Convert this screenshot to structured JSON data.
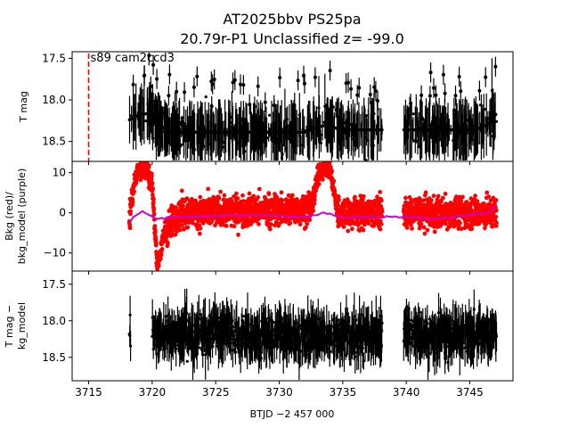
{
  "figure": {
    "title_line1": "AT2025bbv  PS25pa",
    "title_line2": "20.79r-P1 Unclassified z= -99.0",
    "xlabel": "BTJD −2 457 000"
  },
  "chart_data": [
    {
      "type": "scatter",
      "panel": "top",
      "ylabel": "T mag",
      "y_inverted": true,
      "xlim": [
        3713.7,
        3748.4
      ],
      "ylim": [
        18.74,
        17.42
      ],
      "x_ticks": [
        3715,
        3720,
        3725,
        3730,
        3735,
        3740,
        3745
      ],
      "y_ticks": [
        17.5,
        18.0,
        18.5
      ],
      "y_tick_labels": [
        "17.5",
        "18.0",
        "18.5"
      ],
      "vline_x": 3715.0,
      "vline_color": "#ff0000",
      "annotation": "s89 cam2ccd3",
      "marker_color": "#000000",
      "segments": [
        {
          "x_start": 3718.2,
          "x_end": 3738.1
        },
        {
          "x_start": 3739.8,
          "x_end": 3747.1
        }
      ],
      "baseline_mag": 18.4,
      "bump_points": [
        {
          "x": 3718.2,
          "y": 18.24
        },
        {
          "x": 3719.0,
          "y": 18.18
        },
        {
          "x": 3719.8,
          "y": 18.16
        },
        {
          "x": 3720.5,
          "y": 18.3
        },
        {
          "x": 3721.5,
          "y": 18.39
        },
        {
          "x": 3732.0,
          "y": 18.39
        },
        {
          "x": 3733.0,
          "y": 18.33
        },
        {
          "x": 3733.8,
          "y": 18.3
        },
        {
          "x": 3734.8,
          "y": 18.36
        },
        {
          "x": 3745.5,
          "y": 18.36
        },
        {
          "x": 3746.8,
          "y": 18.26
        }
      ]
    },
    {
      "type": "scatter",
      "panel": "middle",
      "ylabel": "Bkg (red)/ bkg_model (purple)",
      "xlim": [
        3713.7,
        3748.4
      ],
      "ylim": [
        -14.5,
        12.8
      ],
      "y_ticks": [
        10,
        0,
        -10
      ],
      "y_tick_labels": [
        "10",
        "0",
        "−10"
      ],
      "marker_color": "#ff0000",
      "model_color": "#cc00cc",
      "bkg_points": [
        {
          "x": 3718.2,
          "y": -2.0
        },
        {
          "x": 3718.5,
          "y": 6.0
        },
        {
          "x": 3718.9,
          "y": 11.0
        },
        {
          "x": 3719.5,
          "y": 11.0
        },
        {
          "x": 3720.0,
          "y": 7.0
        },
        {
          "x": 3720.4,
          "y": -13.0
        },
        {
          "x": 3721.0,
          "y": -5.0
        },
        {
          "x": 3722.0,
          "y": 0.0
        },
        {
          "x": 3732.5,
          "y": 1.0
        },
        {
          "x": 3733.2,
          "y": 11.0
        },
        {
          "x": 3734.0,
          "y": 11.0
        },
        {
          "x": 3734.6,
          "y": 0.0
        },
        {
          "x": 3738.1,
          "y": 0.0
        },
        {
          "x": 3739.8,
          "y": 0.0
        },
        {
          "x": 3747.1,
          "y": 0.0
        }
      ],
      "model_points": [
        {
          "x": 3718.2,
          "y": -2.0
        },
        {
          "x": 3719.2,
          "y": 0.5
        },
        {
          "x": 3720.2,
          "y": -1.5
        },
        {
          "x": 3722.0,
          "y": -1.0
        },
        {
          "x": 3728.0,
          "y": -0.5
        },
        {
          "x": 3732.0,
          "y": -1.0
        },
        {
          "x": 3733.6,
          "y": 0.0
        },
        {
          "x": 3735.0,
          "y": -1.2
        },
        {
          "x": 3738.1,
          "y": -1.0
        },
        {
          "x": 3739.8,
          "y": -1.0
        },
        {
          "x": 3742.0,
          "y": -1.5
        },
        {
          "x": 3745.0,
          "y": -0.5
        },
        {
          "x": 3746.5,
          "y": 0.0
        },
        {
          "x": 3747.1,
          "y": 2.0
        }
      ]
    },
    {
      "type": "scatter",
      "panel": "bottom",
      "ylabel": "T mag − bkg_model",
      "y_inverted": true,
      "xlim": [
        3713.7,
        3748.4
      ],
      "ylim": [
        18.82,
        17.32
      ],
      "y_ticks": [
        17.5,
        18.0,
        18.5
      ],
      "y_tick_labels": [
        "17.5",
        "18.0",
        "18.5"
      ],
      "marker_color": "#000000",
      "segments": [
        {
          "x_start": 3718.2,
          "x_end": 3718.3
        },
        {
          "x_start": 3720.0,
          "x_end": 3738.1
        },
        {
          "x_start": 3739.8,
          "x_end": 3747.1
        }
      ],
      "baseline_mag": 18.2
    }
  ]
}
